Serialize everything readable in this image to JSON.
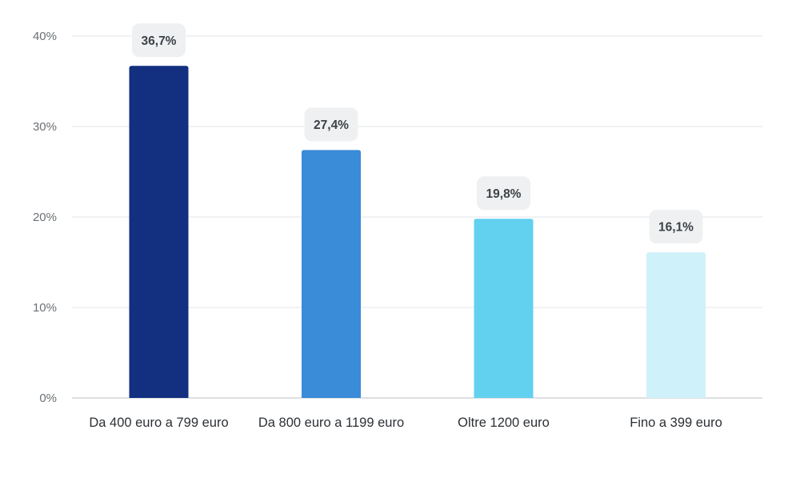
{
  "chart_data": {
    "type": "bar",
    "categories": [
      "Da 400 euro a 799 euro",
      "Da 800 euro a 1199 euro",
      "Oltre 1200 euro",
      "Fino a 399 euro"
    ],
    "values": [
      36.7,
      27.4,
      19.8,
      16.1
    ],
    "value_labels": [
      "36,7%",
      "27,4%",
      "19,8%",
      "16,1%"
    ],
    "colors": [
      "#122f80",
      "#3a8bd8",
      "#62d0ef",
      "#cff1fa"
    ],
    "yticks": [
      0,
      10,
      20,
      30,
      40
    ],
    "ytick_labels": [
      "0%",
      "10%",
      "20%",
      "30%",
      "40%"
    ],
    "ylim": [
      0,
      40
    ],
    "grid": true,
    "legend": "none"
  }
}
